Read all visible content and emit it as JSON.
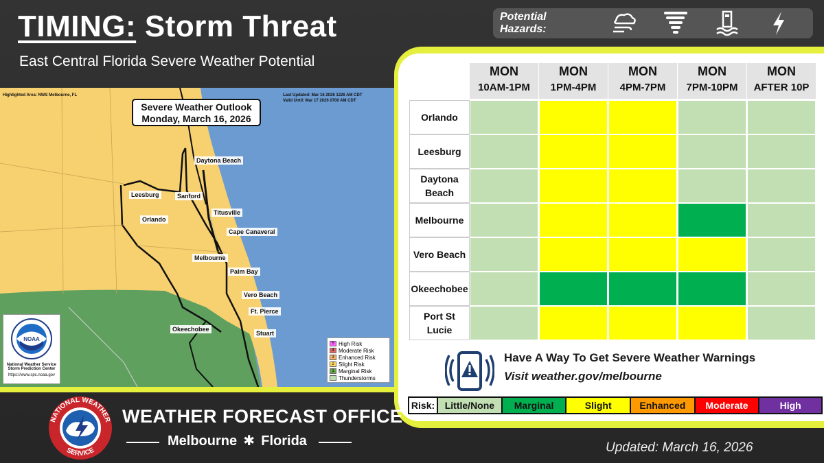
{
  "header": {
    "title_prefix": "TIMING:",
    "title_rest": "Storm Threat",
    "subtitle": "East Central Florida Severe Weather Potential"
  },
  "hazards": {
    "label": "Potential Hazards:",
    "icons": [
      "wind-icon",
      "tornado-icon",
      "flooding-icon",
      "lightning-icon"
    ]
  },
  "map": {
    "highlighted_area": "Highlighted Area: NWS Melbourne, FL",
    "last_updated": "Last Updated: Mar 16 2026 1226 AM CDT",
    "valid_until": "Valid Until: Mar 17 2026 0700 AM CDT",
    "outlook_title": "Severe Weather Outlook",
    "outlook_date": "Monday, March 16, 2026",
    "cities": {
      "daytona_beach": "Daytona Beach",
      "leesburg": "Leesburg",
      "sanford": "Sanford",
      "titusville": "Titusville",
      "orlando": "Orlando",
      "cape_canaveral": "Cape Canaveral",
      "melbourne": "Melbourne",
      "palm_bay": "Palm Bay",
      "vero_beach": "Vero Beach",
      "ft_pierce": "Ft. Pierce",
      "okeechobee": "Okeechobee",
      "stuart": "Stuart"
    },
    "legend": {
      "high": "High Risk",
      "moderate": "Moderate Risk",
      "enhanced": "Enhanced Risk",
      "slight": "Slight Risk",
      "marginal": "Marginal Risk",
      "tstorms": "Thunderstorms"
    },
    "legend_nums": [
      "5",
      "4",
      "3",
      "2",
      "1"
    ],
    "noaa": {
      "logo": "NOAA",
      "line1": "National Weather Service",
      "line2": "Storm Prediction Center",
      "url": "https://www.spc.noaa.gov"
    }
  },
  "table": {
    "columns": [
      {
        "day": "MON",
        "time": "10AM-1PM"
      },
      {
        "day": "MON",
        "time": "1PM-4PM"
      },
      {
        "day": "MON",
        "time": "4PM-7PM"
      },
      {
        "day": "MON",
        "time": "7PM-10PM"
      },
      {
        "day": "MON",
        "time": "AFTER 10P"
      }
    ],
    "rows": [
      {
        "city": "Orlando",
        "risk": [
          "none",
          "slight",
          "slight",
          "none",
          "none"
        ]
      },
      {
        "city": "Leesburg",
        "risk": [
          "none",
          "slight",
          "slight",
          "none",
          "none"
        ]
      },
      {
        "city": "Daytona Beach",
        "risk": [
          "none",
          "slight",
          "slight",
          "none",
          "none"
        ]
      },
      {
        "city": "Melbourne",
        "risk": [
          "none",
          "slight",
          "slight",
          "marginal",
          "none"
        ]
      },
      {
        "city": "Vero Beach",
        "risk": [
          "none",
          "slight",
          "slight",
          "slight",
          "none"
        ]
      },
      {
        "city": "Okeechobee",
        "risk": [
          "none",
          "marginal",
          "marginal",
          "marginal",
          "none"
        ]
      },
      {
        "city": "Port St Lucie",
        "risk": [
          "none",
          "slight",
          "slight",
          "slight",
          "none"
        ]
      }
    ],
    "colors": {
      "none": "#c1dfb3",
      "marginal": "#00b050",
      "slight": "#ffff00"
    }
  },
  "warning": {
    "title": "Have A Way To Get Severe Weather Warnings",
    "link": "Visit weather.gov/melbourne"
  },
  "risk_scale": {
    "label": "Risk:",
    "levels": [
      {
        "name": "Little/None",
        "color": "#c1dfb3",
        "text": "#111111"
      },
      {
        "name": "Marginal",
        "color": "#00b050",
        "text": "#111111"
      },
      {
        "name": "Slight",
        "color": "#ffff00",
        "text": "#111111"
      },
      {
        "name": "Enhanced",
        "color": "#ff9900",
        "text": "#111111"
      },
      {
        "name": "Moderate",
        "color": "#ff0000",
        "text": "#ffffff"
      },
      {
        "name": "High",
        "color": "#7030a0",
        "text": "#ffffff"
      }
    ]
  },
  "footer": {
    "office": "WEATHER FORECAST OFFICE",
    "city": "Melbourne",
    "state": "Florida",
    "nws_seal": "NATIONAL WEATHER SERVICE",
    "updated": "Updated: March 16, 2026"
  }
}
